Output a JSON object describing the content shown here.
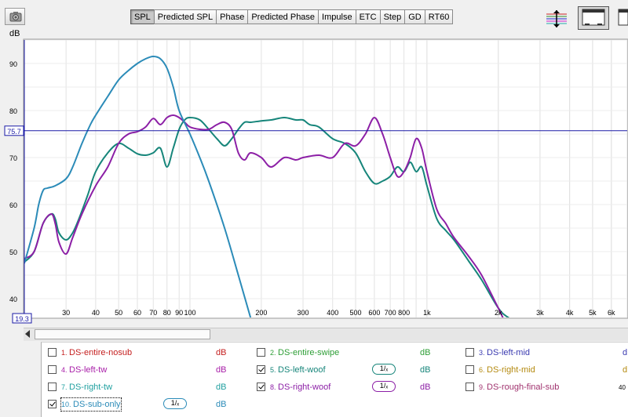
{
  "toolbar": {
    "tabs": [
      {
        "label": "SPL",
        "active": true
      },
      {
        "label": "Predicted SPL",
        "active": false
      },
      {
        "label": "Phase",
        "active": false
      },
      {
        "label": "Predicted Phase",
        "active": false
      },
      {
        "label": "Impulse",
        "active": false
      },
      {
        "label": "ETC",
        "active": false
      },
      {
        "label": "Step",
        "active": false
      },
      {
        "label": "GD",
        "active": false
      },
      {
        "label": "RT60",
        "active": false
      }
    ],
    "icons": [
      "camera-icon",
      "vertical-scale-icon",
      "window-layout-icon",
      "side-panel-icon"
    ]
  },
  "chart_data": {
    "type": "line",
    "ylabel": "dB",
    "ylim": [
      36,
      95
    ],
    "xlim": [
      20,
      7000
    ],
    "xscale": "log",
    "y_ticks": [
      40,
      50,
      60,
      70,
      80,
      90
    ],
    "x_tick_labels": [
      {
        "value": 30,
        "label": "30"
      },
      {
        "value": 40,
        "label": "40"
      },
      {
        "value": 50,
        "label": "50"
      },
      {
        "value": 60,
        "label": "60"
      },
      {
        "value": 70,
        "label": "70"
      },
      {
        "value": 80,
        "label": "80"
      },
      {
        "value": 90,
        "label": "90"
      },
      {
        "value": 100,
        "label": "100"
      },
      {
        "value": 200,
        "label": "200"
      },
      {
        "value": 300,
        "label": "300"
      },
      {
        "value": 400,
        "label": "400"
      },
      {
        "value": 500,
        "label": "500"
      },
      {
        "value": 600,
        "label": "600"
      },
      {
        "value": 700,
        "label": "700"
      },
      {
        "value": 800,
        "label": "800"
      },
      {
        "value": 1000,
        "label": "1k"
      },
      {
        "value": 2000,
        "label": "2k"
      },
      {
        "value": 3000,
        "label": "3k"
      },
      {
        "value": 4000,
        "label": "4k"
      },
      {
        "value": 5000,
        "label": "5k"
      },
      {
        "value": 6000,
        "label": "6k"
      }
    ],
    "cursor_level": {
      "value": 75.7,
      "label": "75.7",
      "color": "#1a1aa6"
    },
    "y_min_readout": "19.3",
    "grid": true,
    "series": [
      {
        "name": "DS-left-woof",
        "color": "#16857a",
        "x": [
          20,
          22,
          24,
          26,
          27,
          28,
          30,
          32,
          34,
          37,
          40,
          45,
          50,
          55,
          60,
          65,
          70,
          75,
          80,
          85,
          90,
          95,
          100,
          110,
          120,
          130,
          140,
          150,
          160,
          170,
          180,
          200,
          220,
          250,
          280,
          300,
          320,
          350,
          400,
          450,
          500,
          550,
          600,
          650,
          700,
          750,
          800,
          850,
          900,
          950,
          1000,
          1100,
          1200,
          1300,
          1500,
          1700,
          2000,
          2200,
          2500
        ],
        "y": [
          47.8,
          50,
          56,
          58,
          57,
          54,
          52.5,
          54,
          57,
          62,
          67,
          71,
          73,
          72,
          70.8,
          70.5,
          71,
          72,
          68,
          72,
          76,
          78,
          78.5,
          78,
          76,
          74,
          72.5,
          74,
          76,
          77.5,
          77.5,
          77.8,
          78,
          78.5,
          78,
          78,
          77,
          76.5,
          74,
          73,
          71,
          67,
          64.5,
          65,
          66,
          68,
          67,
          69,
          67,
          68,
          64,
          57,
          54.5,
          52.5,
          48,
          44,
          38,
          36,
          34.5
        ]
      },
      {
        "name": "DS-right-woof",
        "color": "#8c1fa6",
        "x": [
          20,
          22,
          24,
          26,
          27,
          28,
          30,
          32,
          35,
          40,
          45,
          50,
          55,
          60,
          65,
          70,
          75,
          80,
          85,
          90,
          95,
          100,
          110,
          120,
          130,
          140,
          150,
          160,
          170,
          180,
          200,
          220,
          250,
          280,
          300,
          350,
          400,
          450,
          500,
          550,
          600,
          650,
          700,
          750,
          800,
          850,
          900,
          950,
          1000,
          1100,
          1200,
          1300,
          1500,
          1700,
          2000,
          2200,
          2500
        ],
        "y": [
          48.5,
          50,
          56,
          58,
          56,
          52,
          49.5,
          53,
          58,
          64,
          68,
          73,
          75,
          75.5,
          76.5,
          78.3,
          77,
          78.5,
          79,
          78.5,
          77.5,
          76.5,
          76,
          76,
          77,
          77.5,
          76,
          71,
          69.5,
          71,
          70,
          68,
          70,
          69.5,
          70,
          70.5,
          70,
          73,
          72.5,
          75,
          78.5,
          75,
          70,
          66,
          67,
          70,
          74,
          72,
          67,
          59,
          56,
          53,
          49,
          45,
          38,
          34,
          32
        ]
      },
      {
        "name": "DS-sub-only",
        "color": "#2b8bb8",
        "x": [
          20,
          22,
          23,
          24,
          25,
          27,
          30,
          32,
          35,
          38,
          40,
          45,
          50,
          55,
          60,
          65,
          70,
          75,
          80,
          85,
          90,
          100,
          110,
          120,
          140,
          160,
          180,
          200
        ],
        "y": [
          47.5,
          55,
          60,
          63,
          63.5,
          64,
          65.5,
          68,
          73,
          77,
          79,
          83,
          86.5,
          88.5,
          90,
          91,
          91.5,
          91,
          89,
          85,
          80,
          75,
          70,
          65,
          55,
          45,
          36,
          28
        ]
      }
    ]
  },
  "scrollbar": {
    "name": "horizontal-scrollbar"
  },
  "legend": [
    {
      "num": "1.",
      "name": "DS-entire-nosub",
      "unit": "dB",
      "checked": false,
      "color": "#c41e1e",
      "eq": false,
      "eq_color": ""
    },
    {
      "num": "2.",
      "name": "DS-entire-swipe",
      "unit": "dB",
      "checked": false,
      "color": "#2e9e36",
      "eq": false,
      "eq_color": ""
    },
    {
      "num": "3.",
      "name": "DS-left-mid",
      "unit": "dB",
      "checked": false,
      "color": "#3a3ab0",
      "eq": false,
      "eq_color": ""
    },
    {
      "num": "4.",
      "name": "DS-left-tw",
      "unit": "dB",
      "checked": false,
      "color": "#a81ea8",
      "eq": false,
      "eq_color": ""
    },
    {
      "num": "5.",
      "name": "DS-left-woof",
      "unit": "dB",
      "checked": true,
      "color": "#16857a",
      "eq": true,
      "eq_color": "#16857a"
    },
    {
      "num": "6.",
      "name": "DS-right-mid",
      "unit": "dB",
      "checked": false,
      "color": "#b48a10",
      "eq": false,
      "eq_color": ""
    },
    {
      "num": "7.",
      "name": "DS-right-tw",
      "unit": "dB",
      "checked": false,
      "color": "#20a0a0",
      "eq": false,
      "eq_color": ""
    },
    {
      "num": "8.",
      "name": "DS-right-woof",
      "unit": "dB",
      "checked": true,
      "color": "#8c1fa6",
      "eq": true,
      "eq_color": "#8c1fa6"
    },
    {
      "num": "9.",
      "name": "DS-rough-final-sub",
      "unit": "40",
      "checked": false,
      "color": "#a0326e",
      "eq": false,
      "eq_color": ""
    },
    {
      "num": "10.",
      "name": "DS-sub-only",
      "unit": "dB",
      "checked": true,
      "color": "#2b8bb8",
      "eq": true,
      "eq_color": "#2b8bb8"
    }
  ],
  "eq_label": "1/ₓ"
}
